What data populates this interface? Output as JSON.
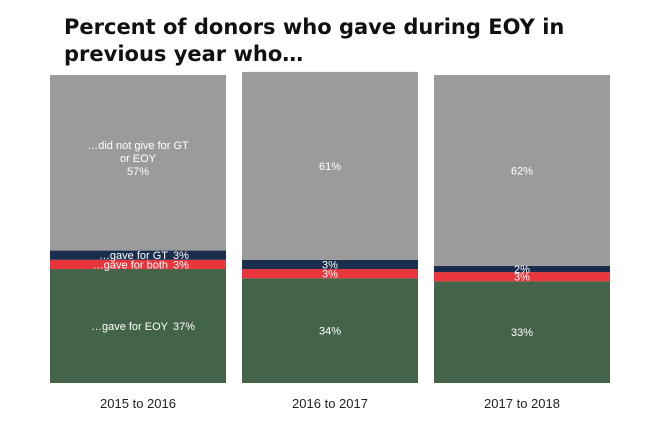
{
  "chart_data": {
    "type": "bar",
    "stacked": true,
    "title": "Percent of donors who gave during EOY in previous year who…",
    "categories": [
      "2015 to 2016",
      "2016 to 2017",
      "2017 to 2018"
    ],
    "series": [
      {
        "name": "…gave for EOY",
        "values": [
          37,
          34,
          33
        ],
        "color": "#436449"
      },
      {
        "name": "…gave for both",
        "values": [
          3,
          3,
          3
        ],
        "color": "#e8363c"
      },
      {
        "name": "…gave for GT",
        "values": [
          3,
          3,
          2
        ],
        "color": "#1b2d4d"
      },
      {
        "name": "…did not give for GT or EOY",
        "values": [
          57,
          61,
          62
        ],
        "color": "#9b9b9b"
      }
    ],
    "value_suffix": "%",
    "ylim": [
      0,
      100
    ],
    "grid": false,
    "legend": "none"
  }
}
